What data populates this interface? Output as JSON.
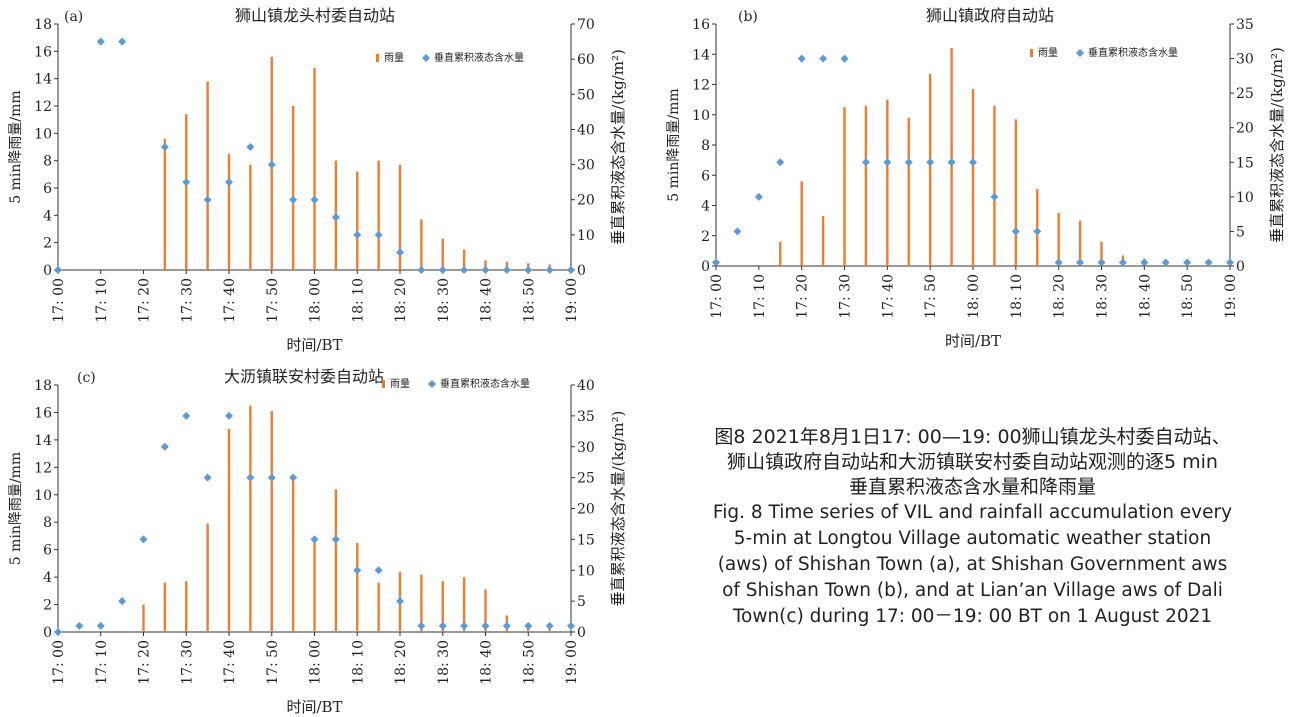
{
  "chart_data": [
    {
      "panel": "(a)",
      "type": "bar",
      "title": "狮山镇龙头村委自动站",
      "xlabel": "时间/BT",
      "ylabel_left": "5 min降雨量/mm",
      "ylabel_right": "垂直累积液态含水量/(kg/m²)",
      "ylim_left": [
        0,
        18
      ],
      "yticks_left": [
        0,
        2,
        4,
        6,
        8,
        10,
        12,
        14,
        16,
        18
      ],
      "ylim_right": [
        0,
        70
      ],
      "yticks_right": [
        0,
        10,
        20,
        30,
        40,
        50,
        60,
        70
      ],
      "xticks": [
        "17: 00",
        "17: 10",
        "17: 20",
        "17: 30",
        "17: 40",
        "17: 50",
        "18: 00",
        "18: 10",
        "18: 20",
        "18: 30",
        "18: 40",
        "18: 50",
        "19: 00"
      ],
      "legend": {
        "bar": "雨量",
        "scatter": "垂直累积液态含水量",
        "position": "top-right"
      },
      "grid": false,
      "series": [
        {
          "kind": "bar",
          "x": [
            0,
            5,
            10,
            15,
            20,
            25,
            30,
            35,
            40,
            45,
            50,
            55,
            60,
            65,
            70,
            75,
            80,
            85,
            90,
            95,
            100,
            105,
            110,
            115,
            120
          ],
          "values": [
            0,
            0,
            0,
            0,
            0,
            9.6,
            11.4,
            13.8,
            8.5,
            7.7,
            15.6,
            12.0,
            14.8,
            8.0,
            7.2,
            8.0,
            7.7,
            3.7,
            2.3,
            1.5,
            0.7,
            0.6,
            0.5,
            0.4,
            0
          ]
        },
        {
          "kind": "scatter",
          "x": [
            0,
            10,
            15,
            25,
            30,
            35,
            40,
            45,
            50,
            55,
            60,
            65,
            70,
            75,
            80,
            85,
            90,
            95,
            100,
            105,
            110,
            115,
            120
          ],
          "values": [
            0,
            65,
            65,
            35,
            25,
            20,
            25,
            35,
            30,
            20,
            20,
            15,
            10,
            10,
            5,
            0,
            0,
            0,
            0,
            0,
            0,
            0,
            0
          ]
        }
      ]
    },
    {
      "panel": "(b)",
      "type": "bar",
      "title": "狮山镇政府自动站",
      "xlabel": "时间/BT",
      "ylabel_left": "5 min降雨量/mm",
      "ylabel_right": "垂直累积液态含水量/(kg/m²)",
      "ylim_left": [
        0,
        16
      ],
      "yticks_left": [
        0,
        2,
        4,
        6,
        8,
        10,
        12,
        14,
        16
      ],
      "ylim_right": [
        0,
        35
      ],
      "yticks_right": [
        0,
        5,
        10,
        15,
        20,
        25,
        30,
        35
      ],
      "xticks": [
        "17: 00",
        "17: 10",
        "17: 20",
        "17: 30",
        "17: 40",
        "17: 50",
        "18: 00",
        "18: 10",
        "18: 20",
        "18: 30",
        "18: 40",
        "18: 50",
        "19: 00"
      ],
      "legend": {
        "bar": "雨量",
        "scatter": "垂直累积液态含水量",
        "position": "top-right"
      },
      "grid": false,
      "series": [
        {
          "kind": "bar",
          "x": [
            0,
            5,
            10,
            15,
            20,
            25,
            30,
            35,
            40,
            45,
            50,
            55,
            60,
            65,
            70,
            75,
            80,
            85,
            90,
            95,
            100,
            105,
            110,
            115,
            120
          ],
          "values": [
            0,
            0,
            0,
            1.6,
            5.6,
            3.3,
            10.5,
            10.6,
            11.0,
            9.8,
            12.7,
            14.4,
            11.7,
            10.6,
            9.7,
            5.1,
            3.5,
            3.0,
            1.6,
            0.7,
            0.5,
            0.3,
            0.3,
            0.2,
            0
          ]
        },
        {
          "kind": "scatter",
          "x": [
            0,
            5,
            10,
            15,
            20,
            25,
            30,
            35,
            40,
            45,
            50,
            55,
            60,
            65,
            70,
            75,
            80,
            85,
            90,
            95,
            100,
            105,
            110,
            115,
            120
          ],
          "values": [
            0.5,
            5,
            10,
            15,
            30,
            30,
            30,
            15,
            15,
            15,
            15,
            15,
            15,
            10,
            5,
            5,
            0.5,
            0.5,
            0.5,
            0.5,
            0.5,
            0.5,
            0.5,
            0.5,
            0.5
          ]
        }
      ]
    },
    {
      "panel": "(c)",
      "type": "bar",
      "title": "大沥镇联安村委自动站",
      "xlabel": "时间/BT",
      "ylabel_left": "5 min降雨量/mm",
      "ylabel_right": "垂直累积液态含水量/(kg/m²)",
      "ylim_left": [
        0,
        18
      ],
      "yticks_left": [
        0,
        2,
        4,
        6,
        8,
        10,
        12,
        14,
        16,
        18
      ],
      "ylim_right": [
        0,
        40
      ],
      "yticks_right": [
        0,
        5,
        10,
        15,
        20,
        25,
        30,
        35,
        40
      ],
      "xticks": [
        "17: 00",
        "17: 10",
        "17: 20",
        "17: 30",
        "17: 40",
        "17: 50",
        "18: 00",
        "18: 10",
        "18: 20",
        "18: 30",
        "18: 40",
        "18: 50",
        "19: 00"
      ],
      "legend": {
        "bar": "雨量",
        "scatter": "垂直累积液态含水量",
        "position": "top-right"
      },
      "grid": false,
      "series": [
        {
          "kind": "bar",
          "x": [
            0,
            5,
            10,
            15,
            20,
            25,
            30,
            35,
            40,
            45,
            50,
            55,
            60,
            65,
            70,
            75,
            80,
            85,
            90,
            95,
            100,
            105,
            110,
            115,
            120
          ],
          "values": [
            0,
            0,
            0,
            0,
            2.0,
            3.6,
            3.7,
            7.9,
            14.8,
            16.5,
            16.1,
            11.3,
            7.0,
            10.4,
            6.5,
            3.6,
            4.4,
            4.2,
            3.7,
            4.0,
            3.1,
            1.2,
            0.6,
            0.5,
            0
          ]
        },
        {
          "kind": "scatter",
          "x": [
            0,
            5,
            10,
            15,
            20,
            25,
            30,
            35,
            40,
            45,
            50,
            55,
            60,
            65,
            70,
            75,
            80,
            85,
            90,
            95,
            100,
            105,
            110,
            115,
            120
          ],
          "values": [
            0,
            1,
            1,
            5,
            15,
            30,
            35,
            25,
            35,
            25,
            25,
            25,
            15,
            15,
            10,
            10,
            5,
            1,
            1,
            1,
            1,
            1,
            1,
            1,
            1
          ]
        }
      ]
    }
  ],
  "caption": {
    "cn_lines": [
      "图8 2021年8月1日17: 00—19: 00狮山镇龙头村委自动站、",
      "狮山镇政府自动站和大沥镇联安村委自动站观测的逐5 min",
      "垂直累积液态含水量和降雨量"
    ],
    "en_lines": [
      "Fig. 8 Time series of VIL and rainfall accumulation every",
      "5-min at Longtou Village automatic weather station",
      "(aws) of Shishan Town (a), at Shishan Government aws",
      "of Shishan Town (b), and at Lian’an Village aws of Dali",
      "Town(c) during 17: 00－19: 00 BT on 1 August 2021"
    ]
  },
  "colors": {
    "bar": "#ED7D31",
    "scatter": "#5B9BD5",
    "axis": "#333333",
    "text": "#222222"
  }
}
